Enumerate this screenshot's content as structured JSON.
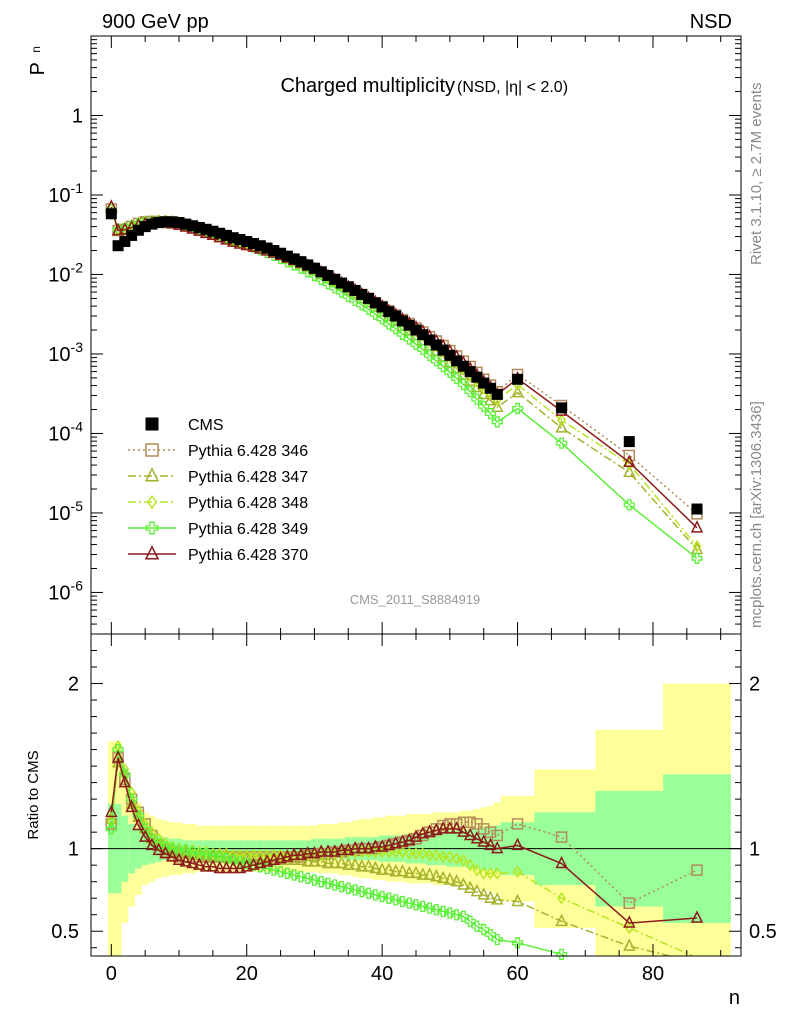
{
  "header": {
    "left_label": "900 GeV pp",
    "right_label": "NSD",
    "title_main": "Charged multiplicity",
    "title_sub": "(NSD, |η| < 2.0)",
    "ylabel_main": "P",
    "ylabel_sub": "n",
    "ratio_ylabel": "Ratio to CMS",
    "xlabel": "n",
    "analysis_tag": "CMS_2011_S8884919",
    "side_text_top": "Rivet 3.1.10, ≥ 2.7M events",
    "side_text_bottom": "mcplots.cern.ch [arXiv:1306.3436]"
  },
  "chart_data": {
    "type": "scatter",
    "xlim": [
      -3,
      93
    ],
    "ylim_main": [
      3e-07,
      10
    ],
    "y_scale_main": "log",
    "ylim_ratio": [
      0.35,
      2.3
    ],
    "x_ticks": [
      "0",
      "20",
      "40",
      "60",
      "80"
    ],
    "y_tick_labels_main": [
      "1",
      "10^-1",
      "10^-2",
      "10^-3",
      "10^-4",
      "10^-5",
      "10^-6"
    ],
    "y_tick_labels_ratio": [
      "0.5",
      "1",
      "2"
    ],
    "legend_position": "left-middle",
    "legend": [
      {
        "name": "CMS",
        "color": "#000000",
        "marker": "square-filled",
        "line": "none"
      },
      {
        "name": "Pythia 6.428 346",
        "color": "#b38a5c",
        "marker": "square-open",
        "line": "dotted"
      },
      {
        "name": "Pythia 6.428 347",
        "color": "#a6b22e",
        "marker": "triangle-open",
        "line": "dashdot"
      },
      {
        "name": "Pythia 6.428 348",
        "color": "#b6e620",
        "marker": "diamond-open",
        "line": "dashdot"
      },
      {
        "name": "Pythia 6.428 349",
        "color": "#5cf038",
        "marker": "cross",
        "line": "solid"
      },
      {
        "name": "Pythia 6.428 370",
        "color": "#8c1a1a",
        "marker": "triangle-open",
        "line": "solid"
      }
    ],
    "x": [
      0,
      1,
      2,
      3,
      4,
      5,
      6,
      7,
      8,
      9,
      10,
      11,
      12,
      13,
      14,
      15,
      16,
      17,
      18,
      19,
      20,
      21,
      22,
      23,
      24,
      25,
      26,
      27,
      28,
      29,
      30,
      31,
      32,
      33,
      34,
      35,
      36,
      37,
      38,
      39,
      40,
      41,
      42,
      43,
      44,
      45,
      46,
      47,
      48,
      49,
      50,
      51,
      52,
      53,
      54,
      55,
      56,
      57,
      60,
      66.5,
      76.5,
      86.5
    ],
    "cms_values": [
      0.058,
      0.023,
      0.026,
      0.031,
      0.036,
      0.04,
      0.043,
      0.045,
      0.046,
      0.046,
      0.045,
      0.043,
      0.041,
      0.039,
      0.037,
      0.035,
      0.033,
      0.031,
      0.029,
      0.0275,
      0.026,
      0.0245,
      0.023,
      0.0215,
      0.02,
      0.0185,
      0.017,
      0.0157,
      0.0145,
      0.0132,
      0.012,
      0.0108,
      0.0097,
      0.0087,
      0.0078,
      0.007,
      0.0063,
      0.0056,
      0.005,
      0.0044,
      0.0039,
      0.0034,
      0.003,
      0.0026,
      0.0023,
      0.002,
      0.00175,
      0.0015,
      0.0013,
      0.00112,
      0.00096,
      0.00082,
      0.0007,
      0.0006,
      0.00051,
      0.00043,
      0.00037,
      0.00031,
      0.00048,
      0.00021,
      7.9e-05,
      1.12e-05
    ],
    "series": [
      {
        "name": "Pythia 6.428 346",
        "ratio": [
          1.15,
          1.55,
          1.42,
          1.3,
          1.22,
          1.15,
          1.08,
          1.02,
          0.98,
          0.96,
          0.95,
          0.95,
          0.95,
          0.95,
          0.95,
          0.95,
          0.95,
          0.95,
          0.95,
          0.95,
          0.95,
          0.95,
          0.95,
          0.95,
          0.95,
          0.95,
          0.95,
          0.95,
          0.95,
          0.96,
          0.96,
          0.97,
          0.97,
          0.98,
          0.98,
          0.99,
          0.99,
          1.0,
          1.0,
          1.0,
          1.01,
          1.02,
          1.03,
          1.04,
          1.05,
          1.06,
          1.08,
          1.1,
          1.12,
          1.14,
          1.15,
          1.15,
          1.16,
          1.16,
          1.15,
          1.12,
          1.1,
          1.08,
          1.15,
          1.07,
          0.67,
          0.87
        ]
      },
      {
        "name": "Pythia 6.428 347",
        "ratio": [
          1.18,
          1.52,
          1.4,
          1.27,
          1.19,
          1.12,
          1.06,
          1.02,
          0.99,
          0.98,
          0.97,
          0.97,
          0.96,
          0.96,
          0.95,
          0.95,
          0.95,
          0.95,
          0.94,
          0.94,
          0.94,
          0.93,
          0.93,
          0.93,
          0.93,
          0.93,
          0.93,
          0.93,
          0.93,
          0.92,
          0.92,
          0.92,
          0.91,
          0.91,
          0.91,
          0.9,
          0.9,
          0.89,
          0.89,
          0.88,
          0.87,
          0.87,
          0.86,
          0.86,
          0.85,
          0.85,
          0.84,
          0.84,
          0.83,
          0.82,
          0.81,
          0.8,
          0.78,
          0.76,
          0.74,
          0.72,
          0.7,
          0.69,
          0.68,
          0.56,
          0.41,
          0.31
        ]
      },
      {
        "name": "Pythia 6.428 348",
        "ratio": [
          1.17,
          1.62,
          1.48,
          1.34,
          1.23,
          1.15,
          1.1,
          1.06,
          1.03,
          1.01,
          1.0,
          0.99,
          0.99,
          0.98,
          0.98,
          0.97,
          0.97,
          0.97,
          0.96,
          0.96,
          0.96,
          0.96,
          0.96,
          0.96,
          0.96,
          0.96,
          0.96,
          0.96,
          0.96,
          0.96,
          0.96,
          0.96,
          0.97,
          0.97,
          0.97,
          0.98,
          0.98,
          0.98,
          0.98,
          0.98,
          0.98,
          0.98,
          0.98,
          0.98,
          0.97,
          0.97,
          0.97,
          0.96,
          0.96,
          0.95,
          0.95,
          0.94,
          0.93,
          0.9,
          0.87,
          0.85,
          0.85,
          0.85,
          0.86,
          0.7,
          0.52,
          0.34
        ]
      },
      {
        "name": "Pythia 6.428 349",
        "ratio": [
          1.12,
          1.6,
          1.45,
          1.3,
          1.2,
          1.12,
          1.06,
          1.03,
          1.01,
          1.0,
          0.99,
          0.99,
          0.98,
          0.97,
          0.97,
          0.96,
          0.95,
          0.94,
          0.93,
          0.92,
          0.91,
          0.9,
          0.89,
          0.88,
          0.87,
          0.86,
          0.85,
          0.84,
          0.83,
          0.82,
          0.81,
          0.8,
          0.79,
          0.78,
          0.77,
          0.76,
          0.75,
          0.74,
          0.73,
          0.72,
          0.71,
          0.7,
          0.69,
          0.68,
          0.67,
          0.66,
          0.65,
          0.64,
          0.63,
          0.62,
          0.61,
          0.6,
          0.59,
          0.56,
          0.53,
          0.51,
          0.48,
          0.45,
          0.43,
          0.36,
          0.16,
          0.24
        ]
      },
      {
        "name": "Pythia 6.428 370",
        "ratio": [
          1.22,
          1.55,
          1.4,
          1.25,
          1.14,
          1.07,
          1.02,
          0.99,
          0.97,
          0.95,
          0.93,
          0.92,
          0.91,
          0.9,
          0.89,
          0.89,
          0.88,
          0.88,
          0.88,
          0.88,
          0.89,
          0.9,
          0.91,
          0.92,
          0.93,
          0.94,
          0.95,
          0.96,
          0.96,
          0.97,
          0.97,
          0.98,
          0.98,
          0.98,
          0.99,
          0.99,
          1.0,
          1.0,
          1.0,
          1.01,
          1.01,
          1.02,
          1.03,
          1.04,
          1.05,
          1.07,
          1.09,
          1.1,
          1.11,
          1.12,
          1.12,
          1.12,
          1.1,
          1.08,
          1.06,
          1.04,
          1.02,
          1.0,
          1.02,
          0.91,
          0.55,
          0.58
        ]
      }
    ],
    "band_bins": [
      -0.5,
      0.5,
      1.5,
      2.5,
      3.5,
      4.5,
      5.5,
      6.5,
      7.5,
      8.5,
      9.5,
      10.5,
      11.5,
      12.5,
      13.5,
      14.5,
      15.5,
      16.5,
      17.5,
      18.5,
      19.5,
      20.5,
      21.5,
      22.5,
      23.5,
      24.5,
      25.5,
      26.5,
      27.5,
      28.5,
      29.5,
      30.5,
      31.5,
      32.5,
      33.5,
      34.5,
      35.5,
      36.5,
      37.5,
      38.5,
      39.5,
      40.5,
      41.5,
      42.5,
      43.5,
      44.5,
      45.5,
      46.5,
      47.5,
      48.5,
      49.5,
      50.5,
      51.5,
      52.5,
      53.5,
      54.5,
      55.5,
      56.5,
      57.5,
      62.5,
      71.5,
      81.5,
      91.5
    ],
    "band_stat": [
      0.27,
      0.27,
      0.2,
      0.15,
      0.12,
      0.1,
      0.09,
      0.08,
      0.07,
      0.06,
      0.06,
      0.05,
      0.05,
      0.05,
      0.05,
      0.05,
      0.05,
      0.05,
      0.05,
      0.05,
      0.05,
      0.05,
      0.05,
      0.05,
      0.05,
      0.05,
      0.05,
      0.05,
      0.05,
      0.05,
      0.06,
      0.06,
      0.06,
      0.06,
      0.06,
      0.07,
      0.07,
      0.07,
      0.07,
      0.07,
      0.08,
      0.08,
      0.08,
      0.08,
      0.09,
      0.09,
      0.09,
      0.1,
      0.1,
      0.1,
      0.11,
      0.11,
      0.11,
      0.12,
      0.12,
      0.13,
      0.13,
      0.14,
      0.16,
      0.22,
      0.35,
      0.45
    ],
    "band_total": [
      0.65,
      0.65,
      0.45,
      0.35,
      0.28,
      0.22,
      0.2,
      0.18,
      0.17,
      0.16,
      0.16,
      0.15,
      0.15,
      0.14,
      0.14,
      0.14,
      0.14,
      0.14,
      0.14,
      0.14,
      0.14,
      0.14,
      0.14,
      0.14,
      0.14,
      0.14,
      0.14,
      0.14,
      0.14,
      0.14,
      0.14,
      0.15,
      0.15,
      0.15,
      0.16,
      0.16,
      0.17,
      0.18,
      0.18,
      0.19,
      0.19,
      0.2,
      0.2,
      0.2,
      0.21,
      0.21,
      0.21,
      0.21,
      0.22,
      0.22,
      0.22,
      0.22,
      0.23,
      0.23,
      0.24,
      0.25,
      0.26,
      0.28,
      0.32,
      0.48,
      0.72,
      1.0
    ]
  }
}
